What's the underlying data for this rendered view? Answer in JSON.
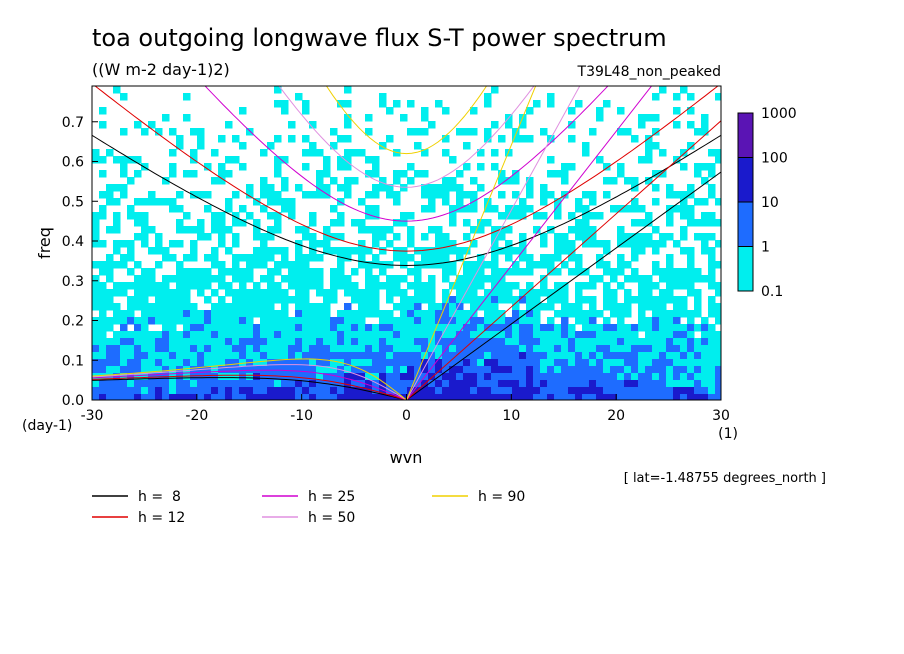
{
  "chart_data": {
    "type": "heatmap",
    "title": "toa outgoing longwave flux S-T power spectrum",
    "subtitle": "((W m-2 day-1)2)",
    "run_label": "T39L48_non_peaked",
    "xlabel": "wvn",
    "ylabel": "freq",
    "x_unit": "(1)",
    "y_unit": "(day-1)",
    "xlim": [
      -30,
      30
    ],
    "ylim": [
      0,
      0.79
    ],
    "x_ticks": [
      "-30",
      "-20",
      "-10",
      "0",
      "10",
      "20",
      "30"
    ],
    "y_ticks": [
      "0.0",
      "0.1",
      "0.2",
      "0.3",
      "0.4",
      "0.5",
      "0.6",
      "0.7"
    ],
    "colorbar": {
      "levels": [
        "0.1",
        "1",
        "10",
        "100",
        "1000"
      ],
      "colors": [
        "#00eeee",
        "#1e6cff",
        "#1a1acc",
        "#5a14b4"
      ]
    },
    "annotation": "[ lat=-1.48755 degrees_north ]",
    "dispersion_curves": [
      {
        "label": "h =  8",
        "h": 8,
        "color": "#000000"
      },
      {
        "label": "h = 12",
        "h": 12,
        "color": "#e00000"
      },
      {
        "label": "h = 25",
        "h": 25,
        "color": "#d000d0"
      },
      {
        "label": "h = 50",
        "h": 50,
        "color": "#e090e0"
      },
      {
        "label": "h = 90",
        "h": 90,
        "color": "#f0d000"
      }
    ]
  }
}
